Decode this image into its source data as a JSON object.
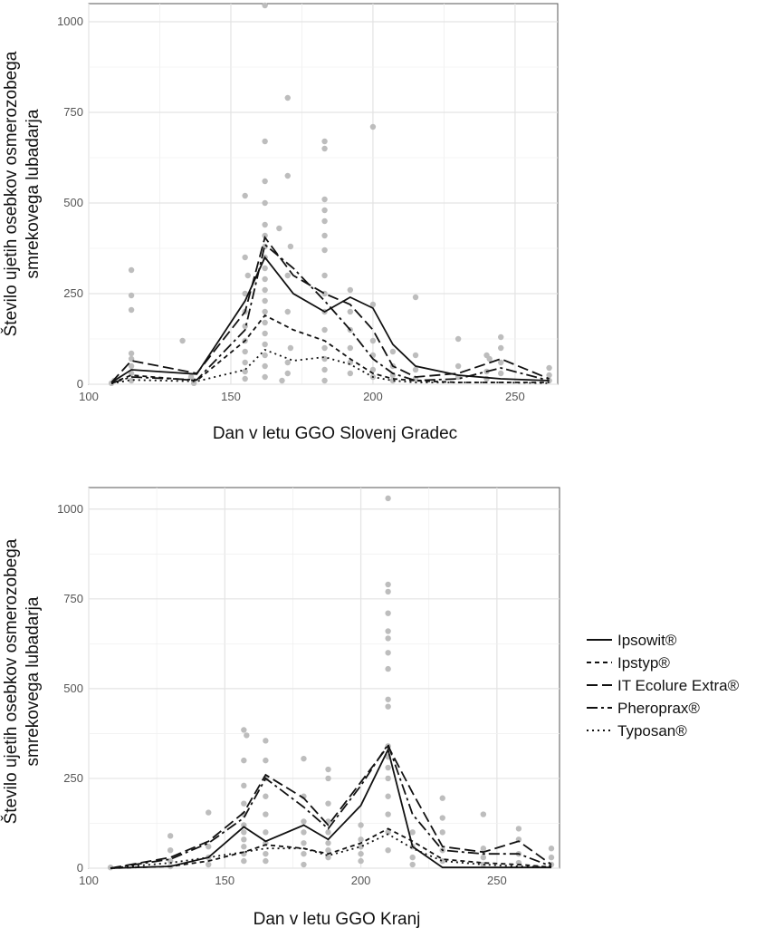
{
  "chart_data": [
    {
      "type": "line",
      "title": "",
      "xlabel": "Dan v letu GGO Slovenj Gradec",
      "ylabel": [
        "Število ujetih osebkov osmerozobega",
        "smrekovega lubadarja"
      ],
      "xlim": [
        100,
        265
      ],
      "ylim": [
        0,
        1050
      ],
      "x_ticks": [
        100,
        150,
        200,
        250
      ],
      "y_ticks": [
        0,
        250,
        500,
        750,
        1000
      ],
      "grid": true,
      "series": [
        {
          "name": "Ipsowit®",
          "style": "solid",
          "x": [
            108,
            115,
            138,
            155,
            162,
            172,
            183,
            192,
            200,
            207,
            215,
            230,
            245,
            262
          ],
          "y": [
            5,
            40,
            28,
            230,
            350,
            250,
            200,
            240,
            210,
            110,
            50,
            25,
            15,
            10
          ]
        },
        {
          "name": "Ipstyp®",
          "style": "short-dash",
          "x": [
            108,
            115,
            138,
            155,
            162,
            172,
            183,
            192,
            200,
            207,
            215,
            230,
            245,
            262
          ],
          "y": [
            3,
            25,
            10,
            120,
            190,
            150,
            120,
            70,
            30,
            15,
            10,
            5,
            5,
            5
          ]
        },
        {
          "name": "IT Ecolure Extra®",
          "style": "long-dash",
          "x": [
            108,
            115,
            138,
            155,
            162,
            172,
            183,
            192,
            200,
            207,
            215,
            230,
            245,
            262
          ],
          "y": [
            5,
            65,
            30,
            200,
            405,
            300,
            250,
            220,
            150,
            50,
            20,
            30,
            70,
            15
          ]
        },
        {
          "name": "Pheroprax®",
          "style": "dash-dot",
          "x": [
            108,
            115,
            138,
            155,
            162,
            172,
            183,
            192,
            200,
            207,
            215,
            230,
            245,
            262
          ],
          "y": [
            3,
            20,
            12,
            150,
            385,
            320,
            230,
            150,
            70,
            30,
            10,
            15,
            45,
            10
          ]
        },
        {
          "name": "Typosan®",
          "style": "dotted",
          "x": [
            108,
            115,
            138,
            155,
            162,
            172,
            183,
            192,
            200,
            207,
            215,
            230,
            245,
            262
          ],
          "y": [
            2,
            12,
            8,
            40,
            95,
            65,
            75,
            55,
            20,
            10,
            5,
            5,
            5,
            3
          ]
        }
      ],
      "scatter_points": [
        [
          108,
          3
        ],
        [
          109,
          10
        ],
        [
          115,
          315
        ],
        [
          115,
          245
        ],
        [
          115,
          205
        ],
        [
          115,
          85
        ],
        [
          115,
          70
        ],
        [
          115,
          50
        ],
        [
          115,
          30
        ],
        [
          115,
          10
        ],
        [
          133,
          120
        ],
        [
          136,
          20
        ],
        [
          137,
          10
        ],
        [
          137,
          3
        ],
        [
          155,
          520
        ],
        [
          155,
          350
        ],
        [
          156,
          300
        ],
        [
          155,
          250
        ],
        [
          155,
          200
        ],
        [
          155,
          160
        ],
        [
          155,
          120
        ],
        [
          155,
          90
        ],
        [
          155,
          60
        ],
        [
          155,
          35
        ],
        [
          155,
          15
        ],
        [
          162,
          1045
        ],
        [
          162,
          670
        ],
        [
          162,
          560
        ],
        [
          162,
          500
        ],
        [
          162,
          440
        ],
        [
          162,
          410
        ],
        [
          162,
          380
        ],
        [
          162,
          350
        ],
        [
          162,
          320
        ],
        [
          162,
          290
        ],
        [
          162,
          260
        ],
        [
          162,
          230
        ],
        [
          162,
          200
        ],
        [
          162,
          170
        ],
        [
          162,
          140
        ],
        [
          162,
          110
        ],
        [
          162,
          80
        ],
        [
          162,
          50
        ],
        [
          162,
          20
        ],
        [
          170,
          790
        ],
        [
          170,
          575
        ],
        [
          167,
          430
        ],
        [
          171,
          380
        ],
        [
          170,
          300
        ],
        [
          170,
          200
        ],
        [
          171,
          100
        ],
        [
          170,
          60
        ],
        [
          170,
          30
        ],
        [
          168,
          10
        ],
        [
          183,
          670
        ],
        [
          183,
          650
        ],
        [
          183,
          510
        ],
        [
          183,
          480
        ],
        [
          183,
          450
        ],
        [
          183,
          410
        ],
        [
          183,
          370
        ],
        [
          183,
          300
        ],
        [
          183,
          250
        ],
        [
          183,
          200
        ],
        [
          183,
          150
        ],
        [
          183,
          100
        ],
        [
          183,
          70
        ],
        [
          183,
          40
        ],
        [
          183,
          10
        ],
        [
          192,
          260
        ],
        [
          192,
          200
        ],
        [
          192,
          150
        ],
        [
          192,
          100
        ],
        [
          192,
          60
        ],
        [
          192,
          30
        ],
        [
          200,
          710
        ],
        [
          200,
          220
        ],
        [
          200,
          120
        ],
        [
          200,
          80
        ],
        [
          200,
          40
        ],
        [
          200,
          20
        ],
        [
          207,
          90
        ],
        [
          207,
          50
        ],
        [
          207,
          25
        ],
        [
          207,
          10
        ],
        [
          215,
          240
        ],
        [
          215,
          80
        ],
        [
          215,
          40
        ],
        [
          215,
          15
        ],
        [
          230,
          125
        ],
        [
          230,
          50
        ],
        [
          230,
          20
        ],
        [
          240,
          80
        ],
        [
          241,
          70
        ],
        [
          240,
          35
        ],
        [
          240,
          15
        ],
        [
          245,
          130
        ],
        [
          245,
          100
        ],
        [
          245,
          60
        ],
        [
          245,
          30
        ],
        [
          262,
          45
        ],
        [
          262,
          25
        ],
        [
          262,
          10
        ]
      ]
    },
    {
      "type": "line",
      "title": "",
      "xlabel": "Dan v letu GGO Kranj",
      "ylabel": [
        "Število ujetih osebkov osmerozobega",
        "smrekovega lubadarja"
      ],
      "xlim": [
        100,
        273
      ],
      "ylim": [
        0,
        1060
      ],
      "x_ticks": [
        100,
        150,
        200,
        250
      ],
      "y_ticks": [
        0,
        250,
        500,
        750,
        1000
      ],
      "grid": true,
      "series": [
        {
          "name": "Ipsowit®",
          "style": "solid",
          "x": [
            108,
            130,
            144,
            157,
            165,
            179,
            188,
            200,
            210,
            219,
            230,
            245,
            258,
            270
          ],
          "y": [
            0,
            5,
            30,
            115,
            75,
            120,
            80,
            175,
            330,
            60,
            2,
            2,
            2,
            2
          ]
        },
        {
          "name": "Ipstyp®",
          "style": "short-dash",
          "x": [
            108,
            130,
            144,
            157,
            165,
            179,
            188,
            200,
            210,
            219,
            230,
            245,
            258,
            270
          ],
          "y": [
            0,
            5,
            20,
            45,
            65,
            55,
            40,
            70,
            110,
            75,
            25,
            15,
            10,
            3
          ]
        },
        {
          "name": "IT Ecolure Extra®",
          "style": "long-dash",
          "x": [
            108,
            130,
            144,
            157,
            165,
            179,
            188,
            200,
            210,
            219,
            230,
            245,
            258,
            270
          ],
          "y": [
            0,
            30,
            75,
            155,
            260,
            195,
            120,
            240,
            340,
            210,
            60,
            45,
            75,
            10
          ]
        },
        {
          "name": "Pheroprax®",
          "style": "dash-dot",
          "x": [
            108,
            130,
            144,
            157,
            165,
            179,
            188,
            200,
            210,
            219,
            230,
            245,
            258,
            270
          ],
          "y": [
            0,
            25,
            70,
            140,
            250,
            170,
            110,
            230,
            345,
            150,
            50,
            40,
            40,
            5
          ]
        },
        {
          "name": "Typosan®",
          "style": "dotted",
          "x": [
            108,
            130,
            144,
            157,
            165,
            179,
            188,
            200,
            210,
            219,
            230,
            245,
            258,
            270
          ],
          "y": [
            0,
            15,
            30,
            45,
            55,
            55,
            35,
            60,
            95,
            55,
            20,
            10,
            5,
            3
          ]
        }
      ],
      "scatter_points": [
        [
          108,
          2
        ],
        [
          130,
          90
        ],
        [
          130,
          50
        ],
        [
          130,
          20
        ],
        [
          130,
          5
        ],
        [
          144,
          155
        ],
        [
          144,
          60
        ],
        [
          144,
          30
        ],
        [
          144,
          10
        ],
        [
          157,
          385
        ],
        [
          158,
          370
        ],
        [
          157,
          300
        ],
        [
          157,
          230
        ],
        [
          157,
          180
        ],
        [
          157,
          150
        ],
        [
          157,
          120
        ],
        [
          157,
          100
        ],
        [
          157,
          80
        ],
        [
          157,
          60
        ],
        [
          157,
          40
        ],
        [
          157,
          20
        ],
        [
          165,
          355
        ],
        [
          165,
          300
        ],
        [
          165,
          250
        ],
        [
          165,
          200
        ],
        [
          165,
          150
        ],
        [
          165,
          100
        ],
        [
          165,
          70
        ],
        [
          165,
          40
        ],
        [
          165,
          20
        ],
        [
          179,
          305
        ],
        [
          179,
          200
        ],
        [
          179,
          130
        ],
        [
          179,
          100
        ],
        [
          179,
          70
        ],
        [
          179,
          40
        ],
        [
          179,
          10
        ],
        [
          188,
          275
        ],
        [
          188,
          250
        ],
        [
          188,
          180
        ],
        [
          188,
          130
        ],
        [
          188,
          100
        ],
        [
          188,
          70
        ],
        [
          188,
          50
        ],
        [
          188,
          30
        ],
        [
          200,
          120
        ],
        [
          200,
          80
        ],
        [
          200,
          60
        ],
        [
          200,
          40
        ],
        [
          200,
          20
        ],
        [
          210,
          1030
        ],
        [
          210,
          790
        ],
        [
          210,
          770
        ],
        [
          210,
          710
        ],
        [
          210,
          660
        ],
        [
          210,
          640
        ],
        [
          210,
          600
        ],
        [
          210,
          555
        ],
        [
          210,
          470
        ],
        [
          210,
          450
        ],
        [
          210,
          340
        ],
        [
          210,
          310
        ],
        [
          210,
          280
        ],
        [
          210,
          250
        ],
        [
          210,
          200
        ],
        [
          210,
          150
        ],
        [
          210,
          100
        ],
        [
          210,
          50
        ],
        [
          219,
          100
        ],
        [
          219,
          60
        ],
        [
          219,
          30
        ],
        [
          219,
          10
        ],
        [
          230,
          195
        ],
        [
          230,
          140
        ],
        [
          230,
          100
        ],
        [
          230,
          50
        ],
        [
          230,
          20
        ],
        [
          245,
          150
        ],
        [
          245,
          55
        ],
        [
          245,
          30
        ],
        [
          245,
          10
        ],
        [
          258,
          110
        ],
        [
          258,
          80
        ],
        [
          258,
          40
        ],
        [
          258,
          15
        ],
        [
          270,
          55
        ],
        [
          270,
          30
        ],
        [
          270,
          10
        ]
      ]
    }
  ],
  "legend": {
    "position": "right",
    "entries": [
      "Ipsowit®",
      "Ipstyp®",
      "IT Ecolure Extra®",
      "Pheroprax®",
      "Typosan®"
    ]
  }
}
